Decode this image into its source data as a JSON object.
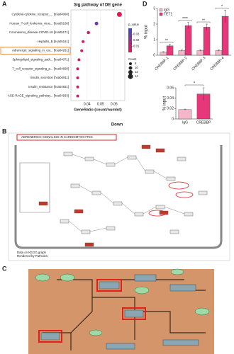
{
  "panel_labels": [
    "A",
    "B",
    "C",
    "D"
  ],
  "chart_data": [
    {
      "type": "dot",
      "title": "Sig pathway of DE gene",
      "x_label": "GeneRatio (count/numInt)",
      "categories": [
        "Cytokine-cytokine_receptor_... [hsa04060]",
        "Human_T-cell_leukemia_virus... [hsa05166]",
        "Coronavirus_disease-COVID-19 [hsa05171]",
        "Hepatitis_B [hsa05161]",
        "Adrenergic_signaling_in_car... [hsa04261]",
        "Sphingolipid_signaling_path... [hsa04071]",
        "T_cell_receptor_signaling_p... [hsa04660]",
        "Insulin_secretion [hsa04911]",
        "Insulin_resistance [hsa04931]",
        "AGE-RAGE_signaling_pathway... [hsa04933]"
      ],
      "values": [
        0.064,
        0.047,
        0.041,
        0.037,
        0.036,
        0.034,
        0.033,
        0.033,
        0.033,
        0.033
      ],
      "counts": [
        14,
        10,
        9,
        8,
        8,
        8,
        8,
        8,
        8,
        8
      ],
      "p_values": [
        0.002,
        0.03,
        0.008,
        0.006,
        0.006,
        0.006,
        0.007,
        0.007,
        0.007,
        0.008
      ],
      "xlim": [
        0.028,
        0.068
      ],
      "xticks": [
        0.04,
        0.05,
        0.06
      ],
      "color_label": "p_value",
      "clim": [
        0,
        0.04
      ],
      "cticks": [
        0.01,
        0.02,
        0.03
      ],
      "colors": [
        "#e8174f",
        "#3b4cc0"
      ],
      "size_label": "Count",
      "size_legend": [
        8,
        10,
        12,
        14
      ]
    },
    {
      "type": "bar",
      "y_label": "% input",
      "categories": [
        "CREBBP-1",
        "CREBBP-2",
        "CREBBP-3",
        "CREBBP-4"
      ],
      "series": [
        {
          "name": "IgG",
          "color": "#f4b6c8",
          "values": [
            0.2,
            0.3,
            0.3,
            0.3
          ],
          "errors": [
            0.03,
            0.05,
            0.05,
            0.05
          ]
        },
        {
          "name": "TET1",
          "color": "#e8367a",
          "values": [
            0.6,
            1.9,
            1.8,
            2.5
          ],
          "errors": [
            0.1,
            0.2,
            0.2,
            0.4
          ]
        }
      ],
      "significance": [
        "**",
        "****",
        "**",
        "*"
      ],
      "ylim": [
        0,
        3
      ],
      "yticks": [
        0,
        1,
        2,
        3
      ]
    },
    {
      "type": "bar",
      "y_label": "% input",
      "categories": [
        "IgG",
        "CREBBP"
      ],
      "values": [
        0.018,
        0.048
      ],
      "errors": [
        0.001,
        0.012
      ],
      "colors": [
        "#f4b6c8",
        "#e8367a"
      ],
      "significance": "*",
      "ylim": [
        0,
        0.06
      ],
      "yticks": [
        0,
        0.02,
        0.04,
        0.06
      ]
    }
  ],
  "pathway_b": {
    "title": "Down",
    "pathway_name": "ADRENERGIC SIGNALING IN CARDIOMYOCYTES",
    "footer": [
      "Data on KEGG graph",
      "Rendered by Pathview"
    ]
  }
}
